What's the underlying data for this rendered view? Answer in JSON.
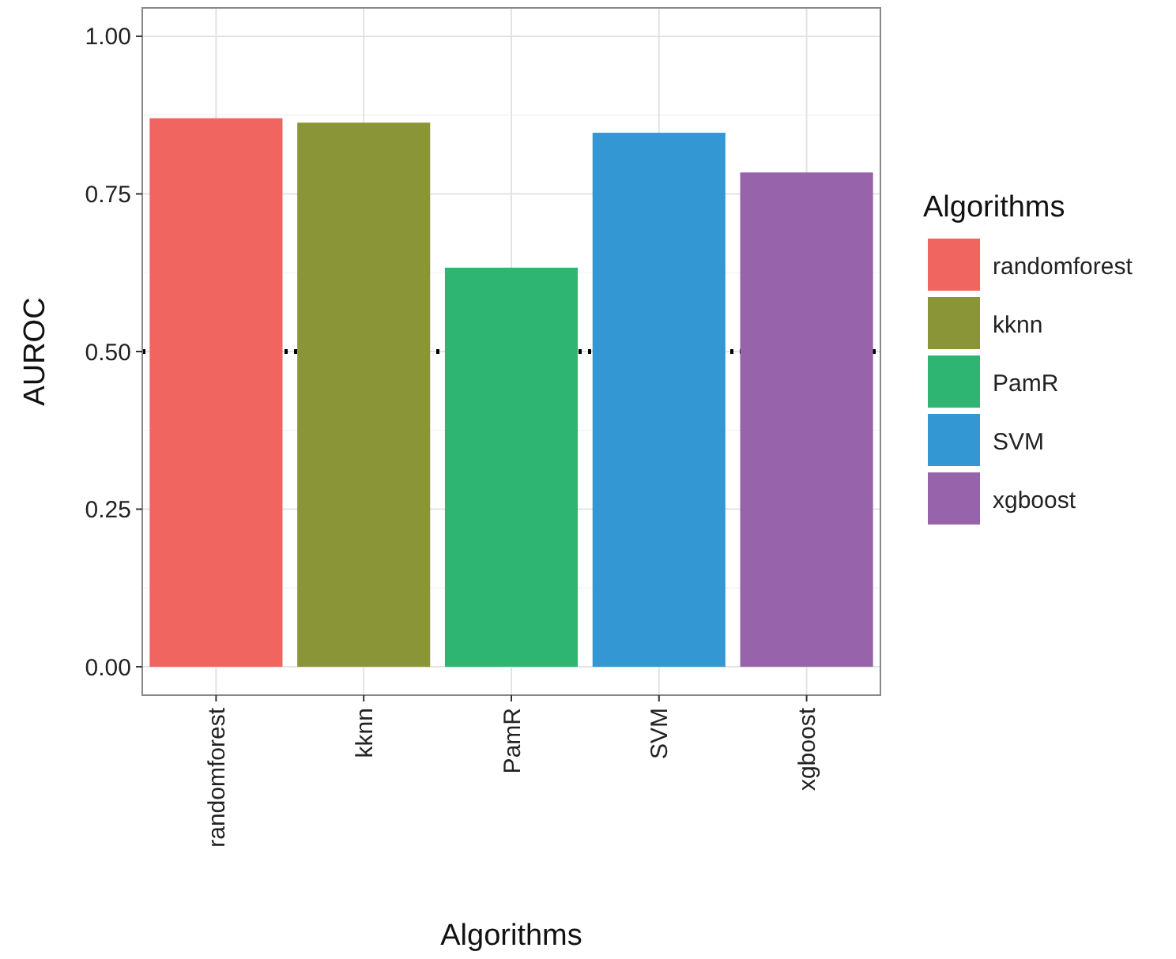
{
  "chart_data": {
    "type": "bar",
    "xlabel": "Algorithms",
    "ylabel": "AUROC",
    "legend_title": "Algorithms",
    "categories": [
      "randomforest",
      "kknn",
      "PamR",
      "SVM",
      "xgboost"
    ],
    "series": [
      {
        "name": "randomforest",
        "color": "#f0655f",
        "values": [
          0.87,
          null,
          null,
          null,
          null
        ]
      },
      {
        "name": "kknn",
        "color": "#8a9537",
        "values": [
          null,
          0.863,
          null,
          null,
          null
        ]
      },
      {
        "name": "PamR",
        "color": "#2db571",
        "values": [
          null,
          null,
          0.633,
          null,
          null
        ]
      },
      {
        "name": "SVM",
        "color": "#3297d3",
        "values": [
          null,
          null,
          null,
          0.847,
          null
        ]
      },
      {
        "name": "xgboost",
        "color": "#9763aa",
        "values": [
          null,
          null,
          null,
          null,
          0.784
        ]
      }
    ],
    "ylim": [
      -0.045,
      1.045
    ],
    "yticks": [
      {
        "value": 0,
        "label": "0.00"
      },
      {
        "value": 0.25,
        "label": "0.25"
      },
      {
        "value": 0.5,
        "label": "0.50"
      },
      {
        "value": 0.75,
        "label": "0.75"
      },
      {
        "value": 1,
        "label": "1.00"
      }
    ],
    "ref_lines": [
      {
        "axis": "y",
        "value": 0.5,
        "color": "#000000",
        "line_style": "dotted"
      }
    ],
    "grid": true,
    "legend": "right"
  }
}
